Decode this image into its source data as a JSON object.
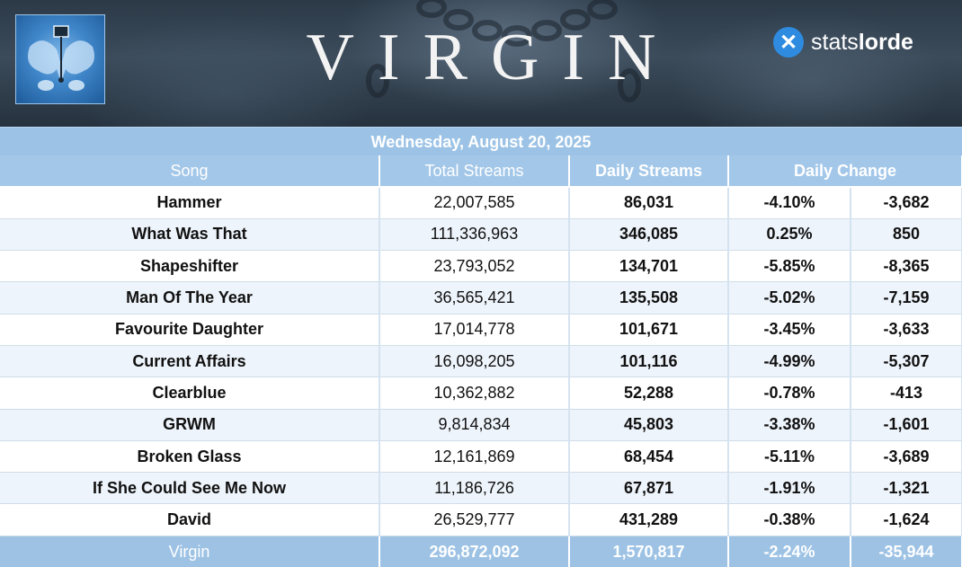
{
  "header": {
    "album_title": "VIRGIN",
    "brand_icon": "x-logo-icon",
    "brand_name_light": "stats",
    "brand_name_bold": "lorde",
    "colors": {
      "accent": "#9cc3e6",
      "negative": "#d11a1a",
      "positive": "#4da33a"
    }
  },
  "date": "Wednesday, August 20, 2025",
  "columns": {
    "song": "Song",
    "total_streams": "Total Streams",
    "daily_streams": "Daily Streams",
    "daily_change": "Daily Change"
  },
  "rows": [
    {
      "song": "Hammer",
      "total": "22,007,585",
      "daily": "86,031",
      "pct": "-4.10%",
      "change": "-3,682",
      "trend": "down"
    },
    {
      "song": "What Was That",
      "total": "111,336,963",
      "daily": "346,085",
      "pct": "0.25%",
      "change": "850",
      "trend": "up"
    },
    {
      "song": "Shapeshifter",
      "total": "23,793,052",
      "daily": "134,701",
      "pct": "-5.85%",
      "change": "-8,365",
      "trend": "down"
    },
    {
      "song": "Man Of The Year",
      "total": "36,565,421",
      "daily": "135,508",
      "pct": "-5.02%",
      "change": "-7,159",
      "trend": "down"
    },
    {
      "song": "Favourite Daughter",
      "total": "17,014,778",
      "daily": "101,671",
      "pct": "-3.45%",
      "change": "-3,633",
      "trend": "down"
    },
    {
      "song": "Current Affairs",
      "total": "16,098,205",
      "daily": "101,116",
      "pct": "-4.99%",
      "change": "-5,307",
      "trend": "down"
    },
    {
      "song": "Clearblue",
      "total": "10,362,882",
      "daily": "52,288",
      "pct": "-0.78%",
      "change": "-413",
      "trend": "down"
    },
    {
      "song": "GRWM",
      "total": "9,814,834",
      "daily": "45,803",
      "pct": "-3.38%",
      "change": "-1,601",
      "trend": "down"
    },
    {
      "song": "Broken Glass",
      "total": "12,161,869",
      "daily": "68,454",
      "pct": "-5.11%",
      "change": "-3,689",
      "trend": "down"
    },
    {
      "song": "If She Could See Me Now",
      "total": "11,186,726",
      "daily": "67,871",
      "pct": "-1.91%",
      "change": "-1,321",
      "trend": "down"
    },
    {
      "song": "David",
      "total": "26,529,777",
      "daily": "431,289",
      "pct": "-0.38%",
      "change": "-1,624",
      "trend": "down"
    }
  ],
  "total": {
    "name": "Virgin",
    "total": "296,872,092",
    "daily": "1,570,817",
    "pct": "-2.24%",
    "change": "-35,944"
  }
}
